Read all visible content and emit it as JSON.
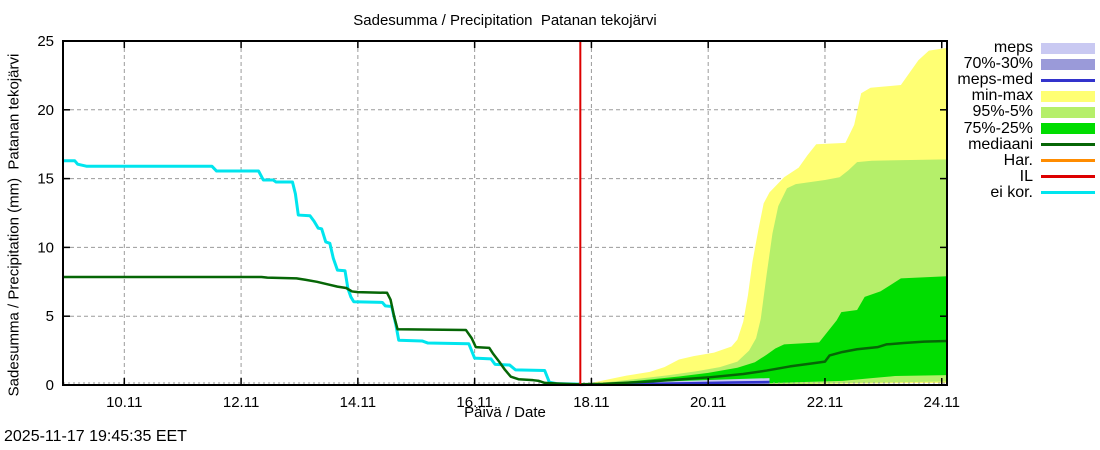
{
  "footer": {
    "timestamp": "2025-11-17 19:45:35 EET"
  },
  "legend": {
    "items": [
      {
        "key": "meps",
        "label": "meps",
        "type": "band",
        "color": "#c9c9f2"
      },
      {
        "key": "70-30",
        "label": "70%-30%",
        "type": "band",
        "color": "#9a9ad9"
      },
      {
        "key": "meps-med",
        "label": "meps-med",
        "type": "line",
        "color": "#3333cc"
      },
      {
        "key": "min-max",
        "label": "min-max",
        "type": "band",
        "color": "#ffff73"
      },
      {
        "key": "95-5",
        "label": "95%-5%",
        "type": "band",
        "color": "#b5ef6a"
      },
      {
        "key": "75-25",
        "label": "75%-25%",
        "type": "band",
        "color": "#00dd00"
      },
      {
        "key": "mediaani",
        "label": "mediaani",
        "type": "line",
        "color": "#066606"
      },
      {
        "key": "har",
        "label": "Har.",
        "type": "line",
        "color": "#ff8c00"
      },
      {
        "key": "il",
        "label": "IL",
        "type": "line",
        "color": "#dd0000"
      },
      {
        "key": "ei-kor",
        "label": "ei kor.",
        "type": "line",
        "color": "#00e5ee"
      }
    ]
  },
  "chart_data": {
    "type": "area",
    "title": "Sadesumma / Precipitation  Patanan tekojärvi",
    "xlabel": "Päivä / Date",
    "ylabel": "Sadesumma / Precipitation (mm)  Patanan tekojärvi",
    "x_unit": "day of November",
    "x_domain": [
      8.95,
      24.09
    ],
    "ylim": [
      0,
      25
    ],
    "x_ticks": [
      {
        "x": 10,
        "label": "10.11"
      },
      {
        "x": 12,
        "label": "12.11"
      },
      {
        "x": 14,
        "label": "14.11"
      },
      {
        "x": 16,
        "label": "16.11"
      },
      {
        "x": 18,
        "label": "18.11"
      },
      {
        "x": 20,
        "label": "20.11"
      },
      {
        "x": 22,
        "label": "22.11"
      },
      {
        "x": 24,
        "label": "24.11"
      }
    ],
    "y_ticks": [
      0,
      5,
      10,
      15,
      20,
      25
    ],
    "grid": true,
    "grid_color": "#9b9b9b",
    "forecast_start_x": 17.81,
    "forecast_line_color": "#dd0000",
    "bands": [
      {
        "key": "min-max",
        "name": "min-max",
        "color": "#ffff73",
        "top": [
          [
            17.81,
            0.05
          ],
          [
            18.0,
            0.15
          ],
          [
            18.3,
            0.42
          ],
          [
            18.6,
            0.68
          ],
          [
            19.0,
            0.95
          ],
          [
            19.25,
            1.3
          ],
          [
            19.5,
            1.85
          ],
          [
            19.75,
            2.1
          ],
          [
            20.1,
            2.35
          ],
          [
            20.4,
            2.8
          ],
          [
            20.5,
            3.3
          ],
          [
            20.6,
            4.6
          ],
          [
            20.68,
            6.5
          ],
          [
            20.76,
            9.0
          ],
          [
            20.86,
            11.3
          ],
          [
            20.95,
            13.2
          ],
          [
            21.05,
            14.0
          ],
          [
            21.3,
            15.1
          ],
          [
            21.55,
            15.8
          ],
          [
            21.7,
            16.7
          ],
          [
            21.85,
            17.5
          ],
          [
            22.35,
            17.6
          ],
          [
            22.5,
            18.9
          ],
          [
            22.62,
            21.2
          ],
          [
            22.78,
            21.6
          ],
          [
            23.3,
            21.8
          ],
          [
            23.45,
            22.7
          ],
          [
            23.6,
            23.6
          ],
          [
            23.78,
            24.3
          ],
          [
            24.09,
            24.5
          ]
        ],
        "bottom": [
          [
            17.81,
            0.0
          ],
          [
            20.5,
            0.03
          ],
          [
            22.0,
            0.08
          ],
          [
            23.0,
            0.12
          ],
          [
            24.09,
            0.15
          ]
        ]
      },
      {
        "key": "95-5",
        "name": "95%-5%",
        "color": "#b5ef6a",
        "top": [
          [
            17.81,
            0.03
          ],
          [
            18.3,
            0.22
          ],
          [
            18.8,
            0.45
          ],
          [
            19.3,
            0.7
          ],
          [
            19.8,
            1.0
          ],
          [
            20.2,
            1.3
          ],
          [
            20.5,
            1.7
          ],
          [
            20.7,
            2.5
          ],
          [
            20.82,
            3.4
          ],
          [
            20.9,
            4.8
          ],
          [
            21.0,
            8.0
          ],
          [
            21.1,
            11.0
          ],
          [
            21.2,
            13.0
          ],
          [
            21.35,
            14.3
          ],
          [
            21.5,
            14.6
          ],
          [
            22.0,
            14.9
          ],
          [
            22.25,
            15.1
          ],
          [
            22.4,
            15.6
          ],
          [
            22.55,
            16.2
          ],
          [
            22.8,
            16.3
          ],
          [
            24.09,
            16.4
          ]
        ],
        "bottom": [
          [
            17.81,
            0.0
          ],
          [
            21.5,
            0.08
          ],
          [
            22.5,
            0.15
          ],
          [
            24.09,
            0.25
          ]
        ]
      },
      {
        "key": "75-25",
        "name": "75%-25%",
        "color": "#00dd00",
        "top": [
          [
            17.81,
            0.02
          ],
          [
            18.4,
            0.16
          ],
          [
            19.0,
            0.4
          ],
          [
            19.5,
            0.62
          ],
          [
            20.0,
            0.88
          ],
          [
            20.5,
            1.25
          ],
          [
            20.8,
            1.65
          ],
          [
            21.0,
            2.2
          ],
          [
            21.15,
            2.65
          ],
          [
            21.3,
            2.95
          ],
          [
            21.9,
            3.1
          ],
          [
            22.05,
            3.9
          ],
          [
            22.2,
            4.7
          ],
          [
            22.28,
            5.3
          ],
          [
            22.55,
            5.45
          ],
          [
            22.68,
            6.4
          ],
          [
            22.95,
            6.8
          ],
          [
            23.1,
            7.2
          ],
          [
            23.3,
            7.75
          ],
          [
            24.09,
            7.9
          ]
        ],
        "bottom": [
          [
            17.81,
            0.0
          ],
          [
            20.5,
            0.05
          ],
          [
            21.5,
            0.2
          ],
          [
            22.3,
            0.3
          ],
          [
            22.8,
            0.5
          ],
          [
            23.2,
            0.65
          ],
          [
            24.09,
            0.72
          ]
        ]
      },
      {
        "key": "meps",
        "name": "meps",
        "color": "#c9c9f2",
        "top": [
          [
            18.35,
            0.1
          ],
          [
            19.0,
            0.22
          ],
          [
            19.7,
            0.32
          ],
          [
            20.4,
            0.42
          ],
          [
            21.05,
            0.5
          ]
        ],
        "bottom": [
          [
            18.35,
            0.0
          ],
          [
            21.05,
            0.0
          ]
        ]
      },
      {
        "key": "70-30",
        "name": "70%-30%",
        "color": "#9a9ad9",
        "top": [
          [
            18.35,
            0.06
          ],
          [
            19.2,
            0.14
          ],
          [
            20.0,
            0.2
          ],
          [
            21.05,
            0.27
          ]
        ],
        "bottom": [
          [
            18.35,
            0.0
          ],
          [
            21.05,
            0.0
          ]
        ]
      }
    ],
    "lines": [
      {
        "key": "meps-med",
        "name": "meps-med",
        "color": "#3333cc",
        "width": 2.5,
        "points": [
          [
            17.81,
            0.01
          ],
          [
            18.35,
            0.05
          ],
          [
            19.0,
            0.09
          ],
          [
            19.7,
            0.13
          ],
          [
            20.4,
            0.18
          ],
          [
            21.05,
            0.22
          ]
        ]
      },
      {
        "key": "ei-kor",
        "name": "ei kor.",
        "color": "#00e5ee",
        "width": 3,
        "points": [
          [
            8.95,
            16.3
          ],
          [
            9.15,
            16.3
          ],
          [
            9.2,
            16.05
          ],
          [
            9.35,
            15.9
          ],
          [
            11.5,
            15.9
          ],
          [
            11.58,
            15.55
          ],
          [
            12.3,
            15.55
          ],
          [
            12.38,
            14.9
          ],
          [
            12.55,
            14.9
          ],
          [
            12.6,
            14.75
          ],
          [
            12.88,
            14.75
          ],
          [
            12.93,
            13.9
          ],
          [
            12.98,
            12.35
          ],
          [
            13.18,
            12.3
          ],
          [
            13.25,
            11.9
          ],
          [
            13.32,
            11.4
          ],
          [
            13.38,
            11.35
          ],
          [
            13.45,
            10.4
          ],
          [
            13.52,
            10.3
          ],
          [
            13.58,
            9.2
          ],
          [
            13.65,
            8.35
          ],
          [
            13.78,
            8.3
          ],
          [
            13.83,
            7.0
          ],
          [
            13.88,
            6.4
          ],
          [
            13.93,
            6.05
          ],
          [
            14.42,
            6.0
          ],
          [
            14.47,
            5.75
          ],
          [
            14.58,
            5.7
          ],
          [
            14.65,
            4.4
          ],
          [
            14.7,
            3.25
          ],
          [
            15.1,
            3.2
          ],
          [
            15.2,
            3.05
          ],
          [
            15.9,
            3.0
          ],
          [
            16.0,
            1.95
          ],
          [
            16.28,
            1.9
          ],
          [
            16.35,
            1.5
          ],
          [
            16.6,
            1.45
          ],
          [
            16.7,
            1.1
          ],
          [
            17.2,
            1.05
          ],
          [
            17.28,
            0.2
          ],
          [
            17.4,
            0.1
          ],
          [
            17.78,
            0.06
          ]
        ]
      },
      {
        "key": "mediaani",
        "name": "mediaani",
        "color": "#066606",
        "width": 2.5,
        "points": [
          [
            8.95,
            7.85
          ],
          [
            12.35,
            7.85
          ],
          [
            12.45,
            7.8
          ],
          [
            12.95,
            7.75
          ],
          [
            13.1,
            7.65
          ],
          [
            13.3,
            7.5
          ],
          [
            13.5,
            7.3
          ],
          [
            13.65,
            7.15
          ],
          [
            13.8,
            7.05
          ],
          [
            13.9,
            6.8
          ],
          [
            14.0,
            6.75
          ],
          [
            14.5,
            6.7
          ],
          [
            14.56,
            6.2
          ],
          [
            14.62,
            5.0
          ],
          [
            14.68,
            4.05
          ],
          [
            15.85,
            4.0
          ],
          [
            15.95,
            3.4
          ],
          [
            16.02,
            2.75
          ],
          [
            16.25,
            2.7
          ],
          [
            16.32,
            2.25
          ],
          [
            16.42,
            1.7
          ],
          [
            16.52,
            1.1
          ],
          [
            16.62,
            0.6
          ],
          [
            16.75,
            0.42
          ],
          [
            17.0,
            0.35
          ],
          [
            17.1,
            0.3
          ],
          [
            17.2,
            0.15
          ],
          [
            17.45,
            0.1
          ],
          [
            17.81,
            0.05
          ],
          [
            18.2,
            0.08
          ],
          [
            18.6,
            0.16
          ],
          [
            19.0,
            0.25
          ],
          [
            19.5,
            0.4
          ],
          [
            20.0,
            0.55
          ],
          [
            20.6,
            0.8
          ],
          [
            21.0,
            1.05
          ],
          [
            21.4,
            1.35
          ],
          [
            21.8,
            1.58
          ],
          [
            22.0,
            1.7
          ],
          [
            22.08,
            2.15
          ],
          [
            22.3,
            2.4
          ],
          [
            22.55,
            2.6
          ],
          [
            22.9,
            2.75
          ],
          [
            23.05,
            2.95
          ],
          [
            23.35,
            3.05
          ],
          [
            23.7,
            3.15
          ],
          [
            24.09,
            3.2
          ]
        ]
      }
    ]
  }
}
